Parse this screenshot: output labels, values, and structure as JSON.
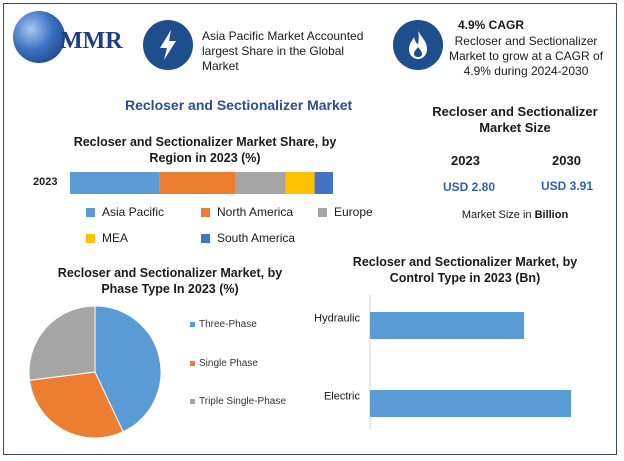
{
  "header": {
    "logo_text": "MMR",
    "info1": "Asia Pacific Market Accounted largest Share in the Global Market",
    "cagr_title": "4.9% CAGR",
    "cagr_text": "Recloser and Sectionalizer Market to grow at a CAGR of 4.9% during 2024-2030"
  },
  "main_title": "Recloser and Sectionalizer Market",
  "market_size": {
    "title": "Recloser and Sectionalizer Market Size",
    "year_1": "2023",
    "year_2": "2030",
    "value_1": "USD 2.80",
    "value_2": "USD 3.91",
    "note_prefix": "Market Size in ",
    "note_unit": "Billion"
  },
  "chart_data": [
    {
      "type": "bar",
      "stacked": true,
      "orientation": "horizontal",
      "title": "Recloser and Sectionalizer Market Share, by Region in 2023 (%)",
      "categories": [
        "2023"
      ],
      "series": [
        {
          "name": "Asia Pacific",
          "values": [
            34
          ],
          "color": "#5b9bd5"
        },
        {
          "name": "North America",
          "values": [
            29
          ],
          "color": "#ed7d31"
        },
        {
          "name": "Europe",
          "values": [
            19
          ],
          "color": "#a5a5a5"
        },
        {
          "name": "MEA",
          "values": [
            11
          ],
          "color": "#ffc000"
        },
        {
          "name": "South America",
          "values": [
            7
          ],
          "color": "#4472c4"
        }
      ],
      "legend_position": "bottom"
    },
    {
      "type": "pie",
      "title": "Recloser and Sectionalizer Market, by Phase Type In 2023 (%)",
      "slices": [
        {
          "name": "Three-Phase",
          "value": 43,
          "color": "#5b9bd5"
        },
        {
          "name": "Single Phase",
          "value": 30,
          "color": "#ed7d31"
        },
        {
          "name": "Triple Single-Phase",
          "value": 27,
          "color": "#a5a5a5"
        }
      ],
      "legend_position": "right"
    },
    {
      "type": "bar",
      "orientation": "horizontal",
      "title": "Recloser and Sectionalizer Market, by Control Type in 2023 (Bn)",
      "categories": [
        "Hydraulic",
        "Electric"
      ],
      "values": [
        1.15,
        1.5
      ],
      "color": "#5b9bd5"
    }
  ]
}
